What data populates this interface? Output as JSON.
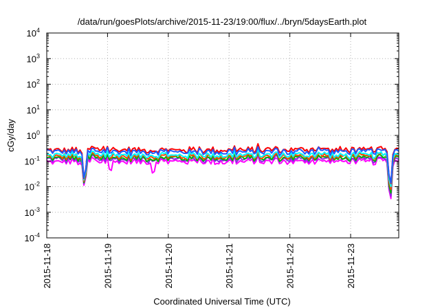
{
  "chart_data": {
    "type": "line",
    "title": "/data/run/goesPlots/archive/2015-11-23/19:00/flux/../bryn/5daysEarth.plot",
    "xlabel": "Coordinated Universal Time (UTC)",
    "ylabel": "cGy/day",
    "xlim": [
      "2015-11-18",
      "2015-11-23 19:00"
    ],
    "ylim": [
      0.0001,
      10000
    ],
    "yscale": "log",
    "grid": true,
    "legend": "none",
    "x_ticks": [
      "2015-11-18",
      "2015-11-19",
      "2015-11-20",
      "2015-11-21",
      "2015-11-22",
      "2015-11-23"
    ],
    "y_ticks": [
      {
        "value": 10000,
        "base": "10",
        "exp": "4"
      },
      {
        "value": 1000,
        "base": "10",
        "exp": "3"
      },
      {
        "value": 100,
        "base": "10",
        "exp": "2"
      },
      {
        "value": 10,
        "base": "10",
        "exp": "1"
      },
      {
        "value": 1,
        "base": "10",
        "exp": "0"
      },
      {
        "value": 0.1,
        "base": "10",
        "exp": "-1"
      },
      {
        "value": 0.01,
        "base": "10",
        "exp": "-2"
      },
      {
        "value": 0.001,
        "base": "10",
        "exp": "-3"
      },
      {
        "value": 0.0001,
        "base": "10",
        "exp": "-4"
      }
    ],
    "series": [
      {
        "color": "#ff00ff",
        "base": 0.095,
        "dips": [
          [
            0.62,
            0.007
          ],
          [
            1.05,
            0.035
          ],
          [
            1.75,
            0.025
          ],
          [
            5.65,
            0.0012
          ]
        ]
      },
      {
        "color": "#8a2be2",
        "base": 0.115,
        "dips": [
          [
            0.62,
            0.008
          ],
          [
            5.65,
            0.0015
          ]
        ]
      },
      {
        "color": "#00b400",
        "base": 0.13,
        "dips": [
          [
            0.62,
            0.009
          ],
          [
            5.65,
            0.002
          ]
        ]
      },
      {
        "color": "#ff4500",
        "base": 0.15,
        "dips": [
          [
            0.62,
            0.01
          ],
          [
            5.65,
            0.003
          ]
        ]
      },
      {
        "color": "#00ffff",
        "base": 0.17,
        "dips": [
          [
            0.62,
            0.011
          ],
          [
            5.65,
            0.004
          ]
        ]
      },
      {
        "color": "#ff0000",
        "base": 0.27,
        "dips": [
          [
            0.62,
            0.012
          ],
          [
            5.65,
            0.005
          ]
        ]
      },
      {
        "color": "#1e5aff",
        "base": 0.23,
        "dips": [
          [
            0.62,
            0.013
          ],
          [
            5.65,
            0.006
          ]
        ]
      }
    ]
  }
}
